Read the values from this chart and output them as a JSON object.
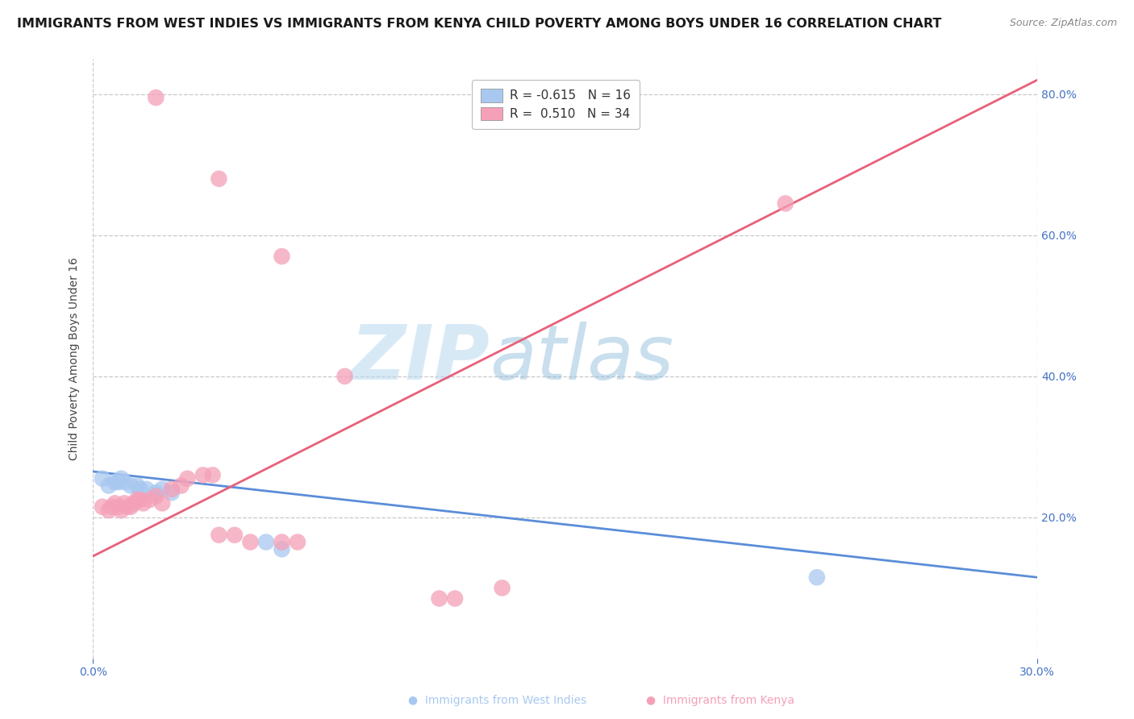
{
  "title": "IMMIGRANTS FROM WEST INDIES VS IMMIGRANTS FROM KENYA CHILD POVERTY AMONG BOYS UNDER 16 CORRELATION CHART",
  "source": "Source: ZipAtlas.com",
  "ylabel": "Child Poverty Among Boys Under 16",
  "watermark": "ZIPatlas",
  "xlim": [
    0.0,
    0.3
  ],
  "ylim": [
    0.0,
    0.85
  ],
  "ytick_vals": [
    0.0,
    0.2,
    0.4,
    0.6,
    0.8
  ],
  "ytick_labels_right": [
    "",
    "20.0%",
    "40.0%",
    "60.0%",
    "80.0%"
  ],
  "xtick_vals": [
    0.0,
    0.3
  ],
  "xtick_labels": [
    "0.0%",
    "30.0%"
  ],
  "legend_r_blue": "-0.615",
  "legend_n_blue": "16",
  "legend_r_pink": "0.510",
  "legend_n_pink": "34",
  "blue_color": "#a8c8f0",
  "pink_color": "#f4a0b8",
  "blue_line_color": "#5b8dd9",
  "pink_line_color": "#e8607a",
  "grid_color": "#c8c8c8",
  "west_indies_legend": "Immigrants from West Indies",
  "kenya_legend": "Immigrants from Kenya",
  "west_indies_points": [
    [
      0.003,
      0.255
    ],
    [
      0.005,
      0.245
    ],
    [
      0.007,
      0.25
    ],
    [
      0.008,
      0.25
    ],
    [
      0.009,
      0.255
    ],
    [
      0.01,
      0.25
    ],
    [
      0.012,
      0.245
    ],
    [
      0.014,
      0.245
    ],
    [
      0.015,
      0.24
    ],
    [
      0.017,
      0.24
    ],
    [
      0.02,
      0.235
    ],
    [
      0.022,
      0.24
    ],
    [
      0.025,
      0.235
    ],
    [
      0.055,
      0.165
    ],
    [
      0.06,
      0.155
    ],
    [
      0.23,
      0.115
    ]
  ],
  "kenya_points": [
    [
      0.003,
      0.215
    ],
    [
      0.005,
      0.21
    ],
    [
      0.006,
      0.215
    ],
    [
      0.007,
      0.22
    ],
    [
      0.008,
      0.215
    ],
    [
      0.009,
      0.21
    ],
    [
      0.01,
      0.22
    ],
    [
      0.011,
      0.215
    ],
    [
      0.012,
      0.215
    ],
    [
      0.013,
      0.22
    ],
    [
      0.014,
      0.225
    ],
    [
      0.015,
      0.225
    ],
    [
      0.016,
      0.22
    ],
    [
      0.018,
      0.225
    ],
    [
      0.02,
      0.23
    ],
    [
      0.022,
      0.22
    ],
    [
      0.025,
      0.24
    ],
    [
      0.028,
      0.245
    ],
    [
      0.03,
      0.255
    ],
    [
      0.035,
      0.26
    ],
    [
      0.038,
      0.26
    ],
    [
      0.04,
      0.175
    ],
    [
      0.045,
      0.175
    ],
    [
      0.05,
      0.165
    ],
    [
      0.06,
      0.165
    ],
    [
      0.065,
      0.165
    ],
    [
      0.11,
      0.085
    ],
    [
      0.115,
      0.085
    ],
    [
      0.02,
      0.795
    ],
    [
      0.04,
      0.68
    ],
    [
      0.06,
      0.57
    ],
    [
      0.08,
      0.4
    ],
    [
      0.22,
      0.645
    ],
    [
      0.13,
      0.1
    ]
  ],
  "background_color": "#ffffff",
  "title_fontsize": 11.5,
  "source_fontsize": 9,
  "axis_label_fontsize": 10,
  "tick_fontsize": 10,
  "legend_fontsize": 11
}
